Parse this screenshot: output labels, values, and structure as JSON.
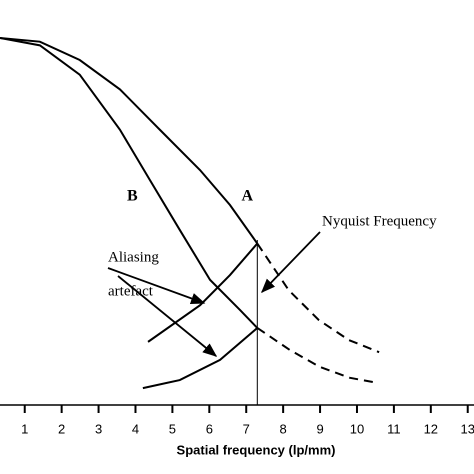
{
  "chart_data": {
    "type": "line",
    "x_label": "Spatial frequency (lp/mm)",
    "xlim": [
      0.33,
      13.17
    ],
    "ylim": [
      0,
      1
    ],
    "xticks": [
      1,
      2,
      3,
      4,
      5,
      6,
      7,
      8,
      9,
      10,
      11,
      12,
      13
    ],
    "nyquist": 7.3,
    "color": "#000000",
    "series": [
      {
        "name": "A",
        "x": [
          0.33,
          1.41,
          2.49,
          3.58,
          4.66,
          5.75,
          6.56,
          7.3,
          8.15,
          8.96,
          9.78,
          10.6
        ],
        "values": [
          1.0,
          0.99,
          0.94,
          0.86,
          0.75,
          0.64,
          0.545,
          0.44,
          0.313,
          0.232,
          0.177,
          0.144
        ]
      },
      {
        "name": "B",
        "x": [
          0.33,
          1.41,
          2.49,
          3.58,
          4.39,
          5.2,
          6.02,
          6.83,
          7.3,
          8.18,
          8.99,
          9.81,
          10.57
        ],
        "values": [
          1.0,
          0.98,
          0.9,
          0.75,
          0.613,
          0.477,
          0.341,
          0.259,
          0.21,
          0.15,
          0.104,
          0.074,
          0.06
        ]
      }
    ],
    "aliasing": [
      {
        "x": [
          4.34,
          5.75,
          6.56,
          7.3
        ],
        "values": [
          0.172,
          0.272,
          0.354,
          0.44
        ]
      },
      {
        "x": [
          4.2,
          5.2,
          6.29,
          7.3
        ],
        "values": [
          0.046,
          0.068,
          0.123,
          0.21
        ]
      }
    ],
    "annotations": [
      "Aliasing",
      "artefact",
      "Nyquist Frequency"
    ]
  }
}
